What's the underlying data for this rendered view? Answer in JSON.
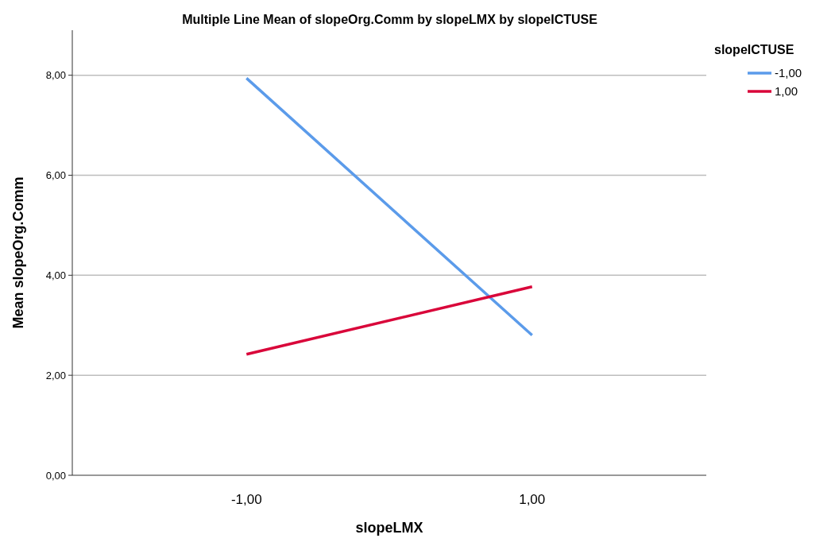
{
  "chart_data": {
    "type": "line",
    "title": "Multiple Line Mean of slopeOrg.Comm by slopeLMX by slopeICTUSE",
    "xlabel": "slopeLMX",
    "ylabel": "Mean slopeOrg.Comm",
    "legend_title": "slopeICTUSE",
    "categories": [
      "-1,00",
      "1,00"
    ],
    "series": [
      {
        "name": "-1,00",
        "color": "#5b9bea",
        "values": [
          7.94,
          2.8
        ]
      },
      {
        "name": "1,00",
        "color": "#d9063a",
        "values": [
          2.42,
          3.77
        ]
      }
    ],
    "ylim": [
      0,
      8.9
    ],
    "yticks": [
      {
        "value": 0,
        "label": "0,00"
      },
      {
        "value": 2,
        "label": "2,00"
      },
      {
        "value": 4,
        "label": "4,00"
      },
      {
        "value": 6,
        "label": "6,00"
      },
      {
        "value": 8,
        "label": "8,00"
      }
    ],
    "grid": "y",
    "legend": "top right",
    "line_style": "solid",
    "marker": "none"
  }
}
